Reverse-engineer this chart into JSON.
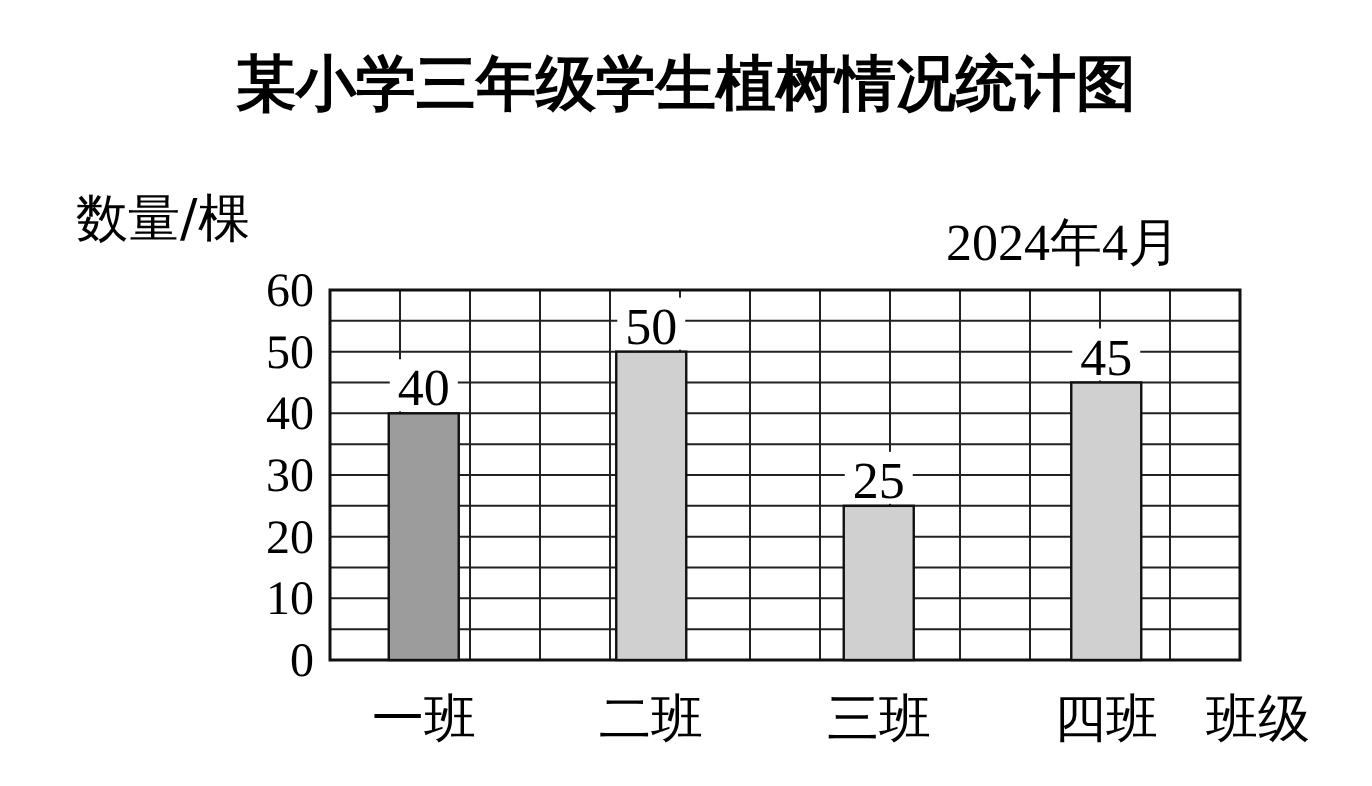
{
  "chart_data": {
    "type": "bar",
    "title": "某小学三年级学生植树情况统计图",
    "ylabel": "数量/棵",
    "xlabel": "班级",
    "annotations": [
      "2024年4月"
    ],
    "categories": [
      "一班",
      "二班",
      "三班",
      "四班"
    ],
    "values": [
      40,
      50,
      25,
      45
    ],
    "colors": [
      "#9c9c9c",
      "#d0d0d0",
      "#d0d0d0",
      "#d0d0d0"
    ],
    "ylim": [
      0,
      60
    ],
    "yticks": [
      0,
      {
        "value": 5,
        "label": null
      },
      10,
      {
        "value": 15,
        "label": null
      },
      20,
      {
        "value": 25,
        "label": null
      },
      30,
      {
        "value": 35,
        "label": null
      },
      40,
      {
        "value": 45,
        "label": null
      },
      50,
      {
        "value": 55,
        "label": null
      },
      60
    ],
    "grid": true,
    "data_labels": true
  }
}
